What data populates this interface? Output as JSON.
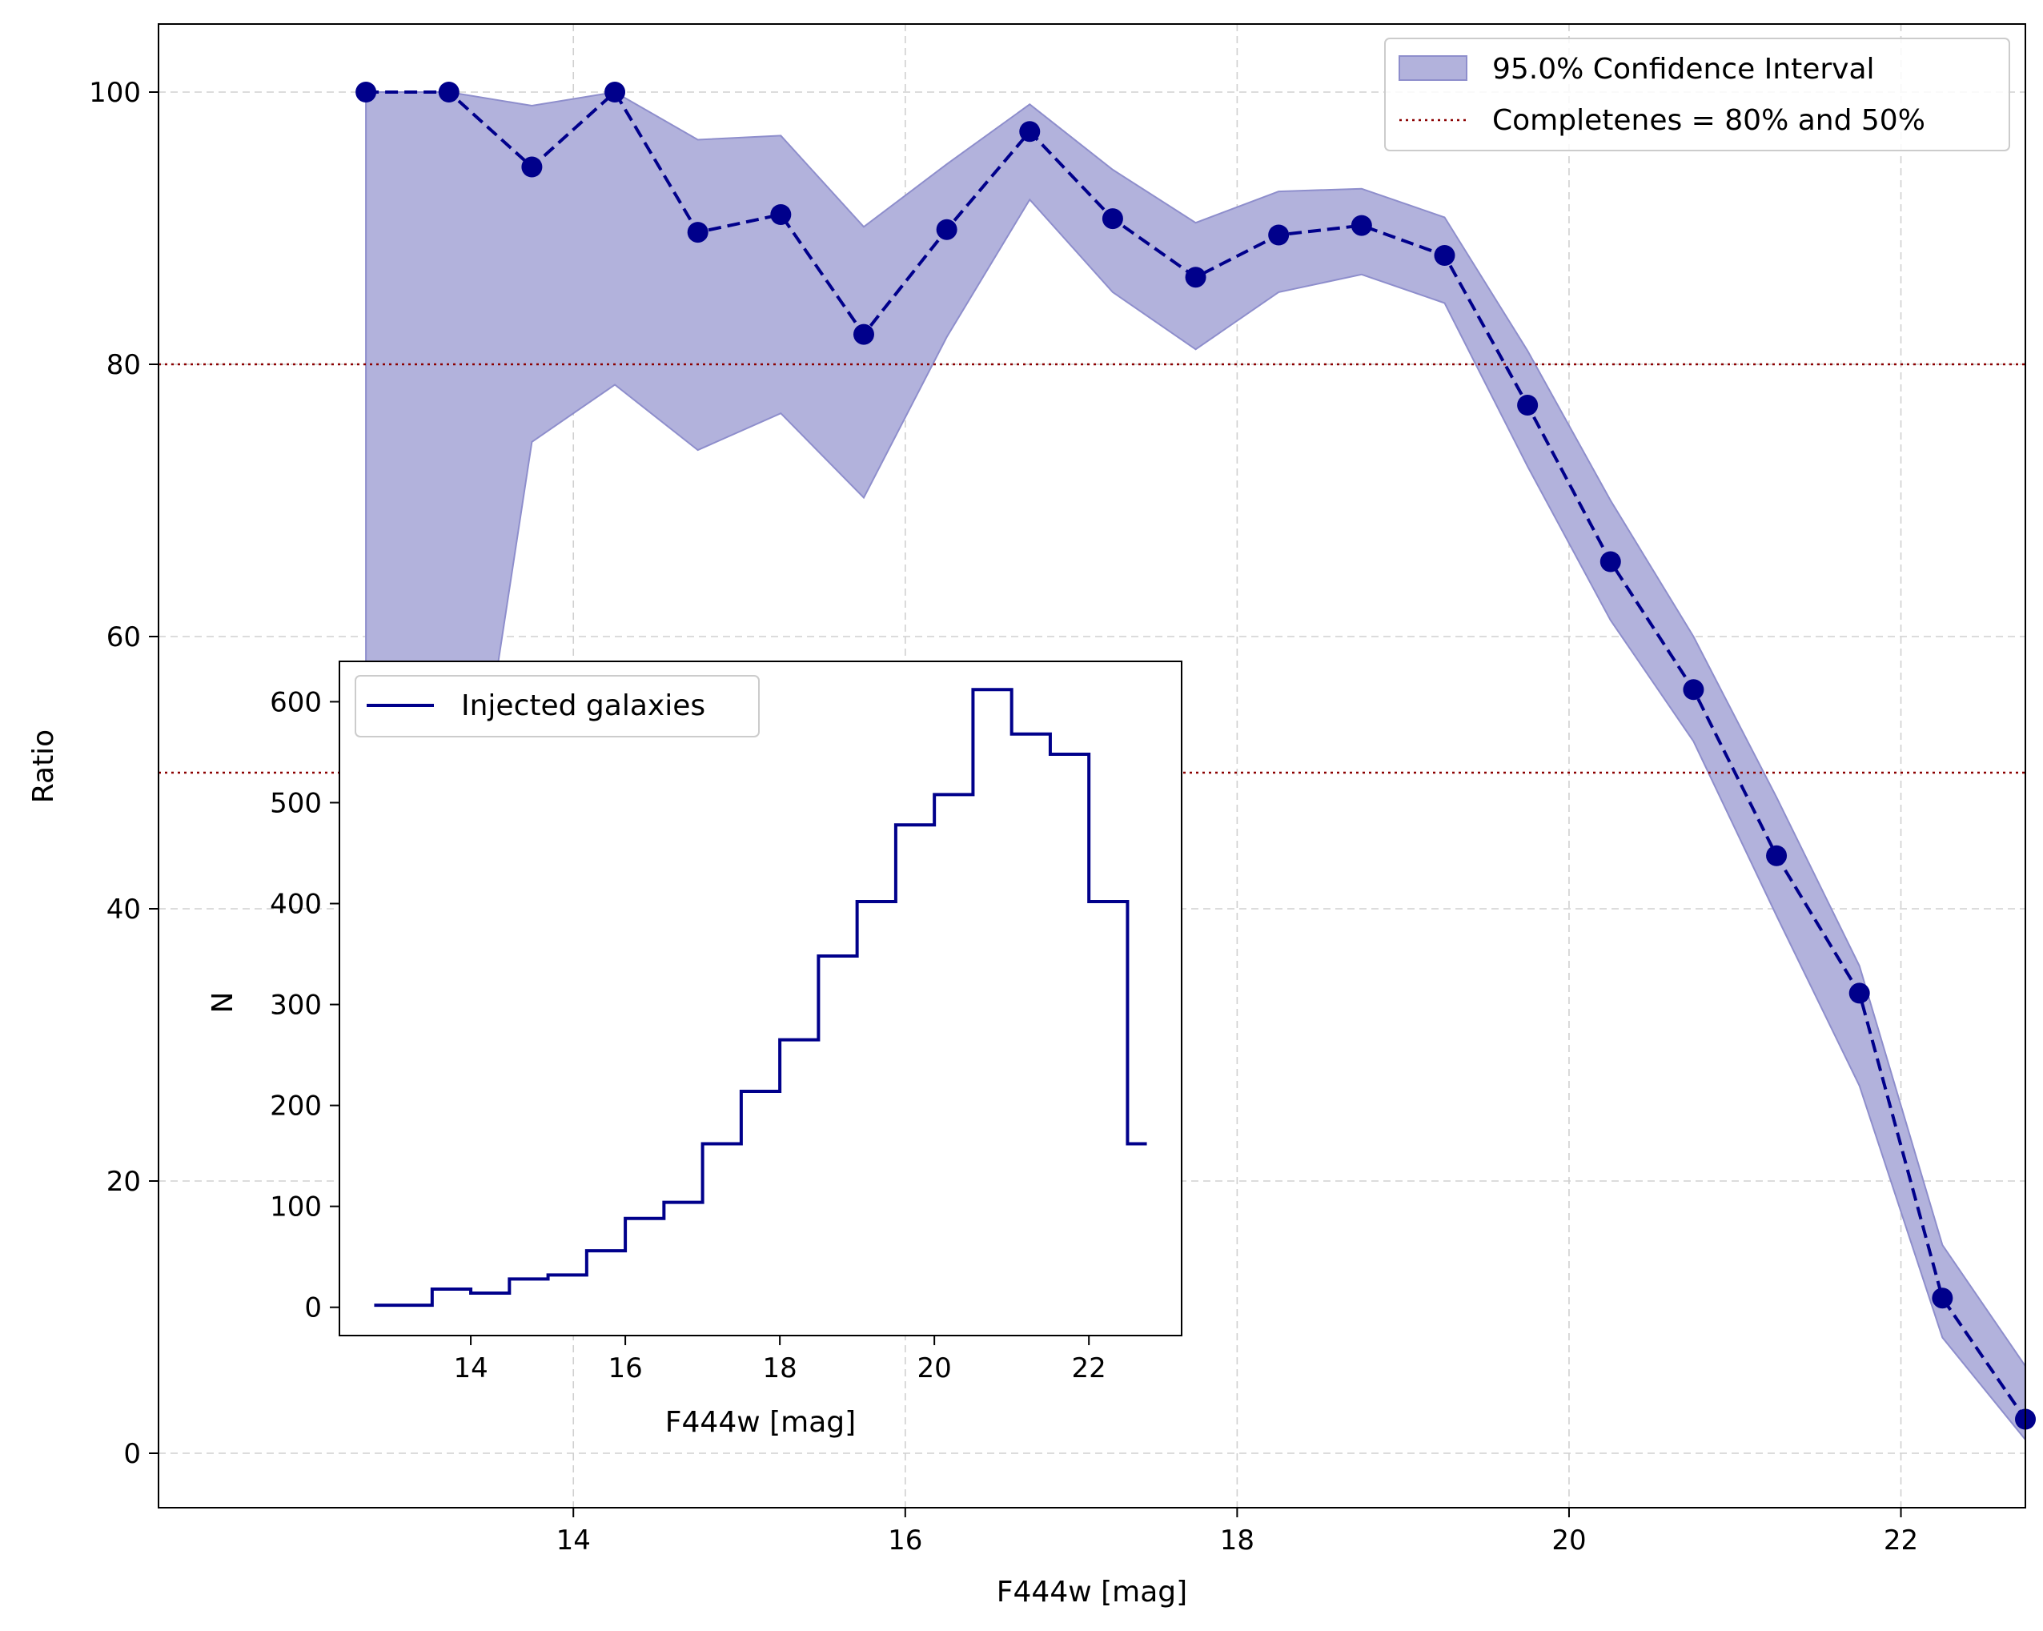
{
  "chart_data": [
    {
      "type": "line",
      "xlabel": "F444w [mag]",
      "ylabel": "Ratio",
      "xlim": [
        11.5,
        22.75
      ],
      "ylim": [
        -4,
        105
      ],
      "xticks": [
        14,
        16,
        18,
        20,
        22
      ],
      "yticks": [
        0,
        20,
        40,
        60,
        80,
        100
      ],
      "grid": true,
      "legend_position": "top-right",
      "series": [
        {
          "type": "line",
          "style": "dashed-with-markers",
          "color": "#00008b",
          "x": [
            12.75,
            13.25,
            13.75,
            14.25,
            14.75,
            15.25,
            15.75,
            16.25,
            16.75,
            17.25,
            17.75,
            18.25,
            18.75,
            19.25,
            19.75,
            20.25,
            20.75,
            21.25,
            21.75,
            22.25,
            22.75
          ],
          "y": [
            100,
            100,
            94.5,
            100,
            89.7,
            91,
            82.2,
            89.9,
            97.1,
            90.7,
            86.4,
            89.5,
            90.2,
            88,
            77,
            65.5,
            56.1,
            43.9,
            33.8,
            11.4,
            2.5
          ]
        },
        {
          "type": "area",
          "name": "95.0% Confidence Interval",
          "color": "#b2b2dc",
          "edge_color": "#8e8ecc",
          "x": [
            12.75,
            13.25,
            13.75,
            14.25,
            14.75,
            15.25,
            15.75,
            16.25,
            16.75,
            17.25,
            17.75,
            18.25,
            18.75,
            19.25,
            19.75,
            20.25,
            20.75,
            21.25,
            21.75,
            22.25,
            22.75
          ],
          "lower": [
            34.4,
            34.4,
            74.3,
            78.5,
            73.7,
            76.4,
            70.2,
            82,
            92.1,
            85.3,
            81.1,
            85.3,
            86.6,
            84.5,
            72.5,
            61.2,
            52.3,
            39.5,
            27,
            8.5,
            1
          ],
          "upper": [
            100,
            100,
            99,
            100,
            96.5,
            96.8,
            90.1,
            94.7,
            99.1,
            94.3,
            90.4,
            92.7,
            92.9,
            90.8,
            81,
            70,
            60,
            48.2,
            35.8,
            15.3,
            6.4
          ]
        },
        {
          "type": "hline",
          "name": "Completenes = 80% and 50%",
          "style": "dotted",
          "color": "#8b0000",
          "values": [
            80,
            50
          ]
        }
      ]
    },
    {
      "type": "line",
      "style": "step",
      "xlabel": "F444w [mag]",
      "ylabel": "N",
      "xlim": [
        12.3,
        23.2
      ],
      "ylim": [
        -28,
        640
      ],
      "xticks": [
        14,
        16,
        18,
        20,
        22
      ],
      "yticks": [
        0,
        100,
        200,
        300,
        400,
        500,
        600
      ],
      "grid": false,
      "legend_position": "top-left",
      "series": [
        {
          "name": "Injected galaxies",
          "color": "#00008b",
          "x": [
            12.75,
            13.25,
            13.75,
            14.25,
            14.75,
            15.25,
            15.75,
            16.25,
            16.75,
            17.25,
            17.75,
            18.25,
            18.75,
            19.25,
            19.75,
            20.25,
            20.75,
            21.25,
            21.75,
            22.25,
            22.75
          ],
          "y": [
            2,
            2,
            18,
            14,
            28,
            32,
            56,
            88,
            104,
            162,
            214,
            265,
            348,
            402,
            478,
            508,
            612,
            568,
            548,
            402,
            162
          ]
        }
      ]
    }
  ]
}
